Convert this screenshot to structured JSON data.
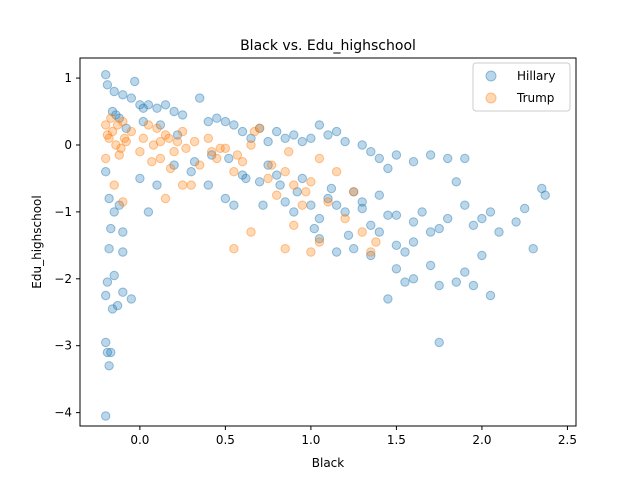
{
  "chart_data": {
    "type": "scatter",
    "title": "Black vs. Edu_highschool",
    "xlabel": "Black",
    "ylabel": "Edu_highschool",
    "xlim": [
      -0.35,
      2.55
    ],
    "ylim": [
      -4.2,
      1.3
    ],
    "xticks": [
      0.0,
      0.5,
      1.0,
      1.5,
      2.0,
      2.5
    ],
    "xtick_labels": [
      "0.0",
      "0.5",
      "1.0",
      "1.5",
      "2.0",
      "2.5"
    ],
    "yticks": [
      1,
      0,
      -1,
      -2,
      -3,
      -4
    ],
    "ytick_labels": [
      "1",
      "0",
      "−1",
      "−2",
      "−3",
      "−4"
    ],
    "grid": false,
    "legend": "top-right",
    "series": [
      {
        "name": "Hillary",
        "color": "#1f77b4",
        "points": [
          [
            -0.2,
            1.05
          ],
          [
            -0.19,
            0.9
          ],
          [
            -0.15,
            0.8
          ],
          [
            -0.1,
            0.75
          ],
          [
            -0.05,
            0.7
          ],
          [
            -0.03,
            0.95
          ],
          [
            0.0,
            0.6
          ],
          [
            0.02,
            0.55
          ],
          [
            0.05,
            0.6
          ],
          [
            0.1,
            0.55
          ],
          [
            0.15,
            0.6
          ],
          [
            0.2,
            0.5
          ],
          [
            0.25,
            0.45
          ],
          [
            0.35,
            0.7
          ],
          [
            0.4,
            0.35
          ],
          [
            0.45,
            0.4
          ],
          [
            0.5,
            0.35
          ],
          [
            0.55,
            0.3
          ],
          [
            0.6,
            0.2
          ],
          [
            0.65,
            0.1
          ],
          [
            0.7,
            0.25
          ],
          [
            0.75,
            0.05
          ],
          [
            0.8,
            0.2
          ],
          [
            0.85,
            0.1
          ],
          [
            0.9,
            0.15
          ],
          [
            0.95,
            0.05
          ],
          [
            1.0,
            0.1
          ],
          [
            1.05,
            0.3
          ],
          [
            1.1,
            0.15
          ],
          [
            1.15,
            0.2
          ],
          [
            1.2,
            0.05
          ],
          [
            1.3,
            0.0
          ],
          [
            1.35,
            -0.1
          ],
          [
            1.4,
            -0.2
          ],
          [
            1.45,
            -0.35
          ],
          [
            1.5,
            -0.15
          ],
          [
            1.6,
            -0.25
          ],
          [
            1.7,
            -0.15
          ],
          [
            1.8,
            -0.2
          ],
          [
            1.9,
            -0.2
          ],
          [
            -0.2,
            -0.4
          ],
          [
            -0.18,
            -0.8
          ],
          [
            -0.15,
            -1.0
          ],
          [
            -0.12,
            -0.9
          ],
          [
            -0.1,
            -1.3
          ],
          [
            -0.17,
            -1.25
          ],
          [
            -0.18,
            -1.55
          ],
          [
            -0.19,
            -2.05
          ],
          [
            -0.2,
            -2.25
          ],
          [
            -0.16,
            -2.45
          ],
          [
            -0.13,
            -2.4
          ],
          [
            -0.1,
            -2.2
          ],
          [
            -0.05,
            -2.3
          ],
          [
            -0.2,
            -2.95
          ],
          [
            -0.19,
            -3.1
          ],
          [
            -0.17,
            -3.1
          ],
          [
            -0.18,
            -3.3
          ],
          [
            -0.2,
            -4.05
          ],
          [
            -0.15,
            -1.95
          ],
          [
            -0.1,
            -1.6
          ],
          [
            0.0,
            -0.5
          ],
          [
            0.05,
            -1.0
          ],
          [
            0.1,
            -0.6
          ],
          [
            0.2,
            -0.3
          ],
          [
            0.3,
            -0.4
          ],
          [
            0.4,
            -0.6
          ],
          [
            0.5,
            -0.8
          ],
          [
            0.55,
            -0.9
          ],
          [
            0.6,
            -0.45
          ],
          [
            0.7,
            -0.55
          ],
          [
            0.75,
            -0.3
          ],
          [
            0.8,
            -0.45
          ],
          [
            0.85,
            -0.85
          ],
          [
            0.9,
            -1.0
          ],
          [
            0.95,
            -0.5
          ],
          [
            1.0,
            -0.9
          ],
          [
            1.05,
            -1.1
          ],
          [
            1.1,
            -0.8
          ],
          [
            1.15,
            -0.9
          ],
          [
            1.2,
            -1.0
          ],
          [
            1.25,
            -0.7
          ],
          [
            1.3,
            -0.95
          ],
          [
            1.35,
            -1.2
          ],
          [
            1.4,
            -1.3
          ],
          [
            1.45,
            -1.05
          ],
          [
            1.5,
            -1.5
          ],
          [
            1.55,
            -1.6
          ],
          [
            1.6,
            -1.45
          ],
          [
            1.65,
            -1.0
          ],
          [
            1.7,
            -1.3
          ],
          [
            1.75,
            -1.25
          ],
          [
            1.8,
            -1.1
          ],
          [
            1.85,
            -0.55
          ],
          [
            1.9,
            -0.9
          ],
          [
            1.95,
            -1.2
          ],
          [
            2.0,
            -1.1
          ],
          [
            2.05,
            -1.0
          ],
          [
            2.1,
            -1.3
          ],
          [
            2.2,
            -1.15
          ],
          [
            2.25,
            -0.95
          ],
          [
            2.3,
            -1.55
          ],
          [
            2.35,
            -0.65
          ],
          [
            2.37,
            -0.75
          ],
          [
            1.6,
            -2.0
          ],
          [
            1.7,
            -1.8
          ],
          [
            1.75,
            -2.1
          ],
          [
            1.85,
            -2.05
          ],
          [
            1.9,
            -1.9
          ],
          [
            1.95,
            -2.1
          ],
          [
            2.0,
            -1.65
          ],
          [
            1.5,
            -1.85
          ],
          [
            1.55,
            -2.05
          ],
          [
            1.45,
            -2.3
          ],
          [
            1.35,
            -1.65
          ],
          [
            1.25,
            -1.55
          ],
          [
            1.15,
            -1.6
          ],
          [
            1.05,
            -1.4
          ],
          [
            2.05,
            -2.25
          ],
          [
            1.75,
            -2.95
          ],
          [
            1.6,
            -1.15
          ],
          [
            1.5,
            -1.05
          ],
          [
            1.4,
            -0.75
          ],
          [
            1.3,
            -0.85
          ],
          [
            1.22,
            -1.35
          ],
          [
            1.12,
            -0.65
          ],
          [
            1.02,
            -1.25
          ],
          [
            0.92,
            -0.7
          ],
          [
            0.82,
            -0.6
          ],
          [
            0.72,
            -0.9
          ],
          [
            0.62,
            -0.5
          ],
          [
            0.52,
            -0.2
          ],
          [
            0.42,
            -0.15
          ],
          [
            0.32,
            -0.25
          ],
          [
            0.22,
            0.15
          ],
          [
            0.12,
            0.3
          ],
          [
            0.02,
            0.35
          ],
          [
            -0.08,
            0.25
          ],
          [
            -0.12,
            0.4
          ],
          [
            -0.14,
            0.45
          ],
          [
            -0.16,
            0.5
          ]
        ]
      },
      {
        "name": "Trump",
        "color": "#ff7f0e",
        "points": [
          [
            -0.2,
            0.3
          ],
          [
            -0.18,
            0.1
          ],
          [
            -0.16,
            0.2
          ],
          [
            -0.14,
            0.0
          ],
          [
            -0.12,
            -0.15
          ],
          [
            -0.1,
            0.35
          ],
          [
            -0.08,
            0.05
          ],
          [
            -0.05,
            0.2
          ],
          [
            0.0,
            -0.1
          ],
          [
            0.05,
            0.3
          ],
          [
            0.08,
            0.0
          ],
          [
            0.1,
            0.25
          ],
          [
            0.12,
            -0.2
          ],
          [
            0.15,
            0.15
          ],
          [
            0.18,
            -0.35
          ],
          [
            0.2,
            -0.1
          ],
          [
            0.22,
            0.05
          ],
          [
            0.25,
            0.2
          ],
          [
            0.3,
            -0.6
          ],
          [
            0.35,
            -0.3
          ],
          [
            0.4,
            0.1
          ],
          [
            0.45,
            -0.2
          ],
          [
            0.5,
            -0.05
          ],
          [
            0.55,
            -0.4
          ],
          [
            0.6,
            -0.25
          ],
          [
            0.65,
            0.0
          ],
          [
            0.7,
            0.25
          ],
          [
            0.75,
            -0.5
          ],
          [
            0.8,
            -0.75
          ],
          [
            0.85,
            -0.4
          ],
          [
            0.9,
            -0.6
          ],
          [
            0.95,
            -0.9
          ],
          [
            1.0,
            -0.55
          ],
          [
            1.05,
            -0.2
          ],
          [
            1.1,
            -0.85
          ],
          [
            1.15,
            -0.4
          ],
          [
            1.2,
            -1.1
          ],
          [
            1.25,
            -0.7
          ],
          [
            1.3,
            -1.3
          ],
          [
            1.35,
            -1.6
          ],
          [
            1.38,
            -1.45
          ],
          [
            -0.15,
            -0.6
          ],
          [
            -0.1,
            -0.85
          ],
          [
            0.15,
            -0.8
          ],
          [
            0.25,
            -0.6
          ],
          [
            0.55,
            -1.55
          ],
          [
            0.65,
            -1.3
          ],
          [
            0.85,
            -1.55
          ],
          [
            0.9,
            -1.2
          ],
          [
            1.0,
            -1.6
          ],
          [
            1.05,
            -1.45
          ],
          [
            -0.2,
            -0.2
          ],
          [
            -0.17,
            0.4
          ],
          [
            -0.19,
            0.15
          ],
          [
            -0.13,
            0.3
          ],
          [
            -0.09,
            0.1
          ],
          [
            -0.11,
            -0.05
          ],
          [
            0.02,
            0.1
          ],
          [
            0.07,
            -0.25
          ],
          [
            0.12,
            0.05
          ],
          [
            0.17,
            0.1
          ],
          [
            0.27,
            -0.05
          ],
          [
            0.32,
            0.05
          ],
          [
            0.42,
            -0.1
          ],
          [
            0.47,
            -0.05
          ],
          [
            0.57,
            -0.15
          ],
          [
            0.67,
            0.2
          ],
          [
            0.77,
            -0.3
          ],
          [
            0.87,
            -0.1
          ],
          [
            0.97,
            -0.7
          ]
        ]
      }
    ]
  }
}
